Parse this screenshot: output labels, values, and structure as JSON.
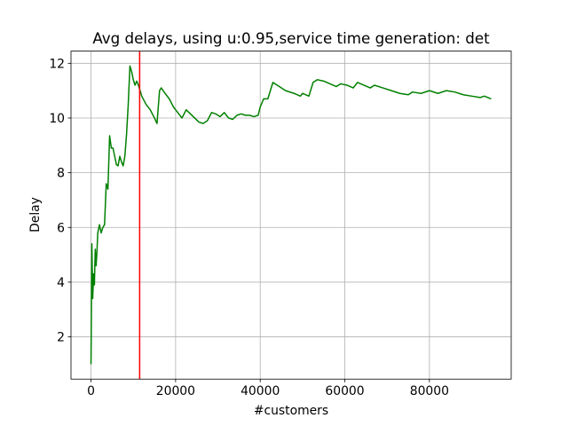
{
  "chart_data": {
    "type": "line",
    "title": "Avg delays, using u:0.95,service time generation: det",
    "x_label": "#customers",
    "y_label": "Delay",
    "x": [
      0,
      200,
      400,
      600,
      800,
      1000,
      1200,
      1400,
      1600,
      2000,
      2400,
      2800,
      3200,
      3600,
      4000,
      4400,
      4800,
      5200,
      5600,
      6000,
      6400,
      6800,
      7200,
      7600,
      8000,
      8400,
      8800,
      9200,
      9600,
      10000,
      10400,
      10800,
      11200,
      11600,
      12000,
      13000,
      14000,
      15000,
      15600,
      16200,
      16600,
      17500,
      18500,
      19500,
      20500,
      21500,
      22500,
      23500,
      24500,
      25500,
      26500,
      27500,
      28500,
      29500,
      30500,
      31500,
      32500,
      33500,
      34500,
      35500,
      36500,
      37500,
      38500,
      39500,
      40000,
      40800,
      41800,
      43000,
      44500,
      46000,
      48000,
      49500,
      50000,
      51500,
      52500,
      53500,
      55000,
      56500,
      58000,
      59000,
      60500,
      62000,
      63000,
      64500,
      66000,
      67000,
      69000,
      71000,
      73000,
      75000,
      76000,
      78000,
      80000,
      82000,
      84000,
      86000,
      88000,
      90000,
      92000,
      93000,
      94600
    ],
    "series": [
      {
        "color": "#008000",
        "values": [
          1.0,
          5.4,
          3.4,
          4.3,
          3.9,
          5.2,
          4.6,
          5.1,
          5.8,
          6.1,
          5.8,
          6.0,
          6.1,
          7.6,
          7.4,
          9.35,
          8.9,
          8.9,
          8.6,
          8.3,
          8.25,
          8.6,
          8.4,
          8.25,
          8.6,
          9.4,
          10.5,
          11.9,
          11.7,
          11.4,
          11.2,
          11.35,
          11.2,
          11.0,
          10.8,
          10.5,
          10.3,
          10.0,
          9.8,
          11.0,
          11.1,
          10.9,
          10.7,
          10.4,
          10.2,
          10.0,
          10.3,
          10.15,
          10.0,
          9.85,
          9.8,
          9.9,
          10.2,
          10.15,
          10.05,
          10.2,
          10.0,
          9.95,
          10.1,
          10.15,
          10.1,
          10.1,
          10.05,
          10.1,
          10.4,
          10.7,
          10.7,
          11.3,
          11.15,
          11.0,
          10.9,
          10.8,
          10.9,
          10.8,
          11.3,
          11.4,
          11.35,
          11.25,
          11.15,
          11.25,
          11.2,
          11.1,
          11.3,
          11.2,
          11.1,
          11.2,
          11.1,
          11.0,
          10.9,
          10.85,
          10.95,
          10.9,
          11.0,
          10.9,
          11.0,
          10.95,
          10.85,
          10.8,
          10.75,
          10.8,
          10.7
        ]
      }
    ],
    "vline": {
      "x": 11500,
      "color": "#ff0000"
    },
    "xlim": [
      -4730,
      99330
    ],
    "ylim": [
      0.455,
      12.445
    ],
    "xticks": [
      0,
      20000,
      40000,
      60000,
      80000
    ],
    "yticks": [
      2,
      4,
      6,
      8,
      10,
      12
    ],
    "grid": true
  }
}
